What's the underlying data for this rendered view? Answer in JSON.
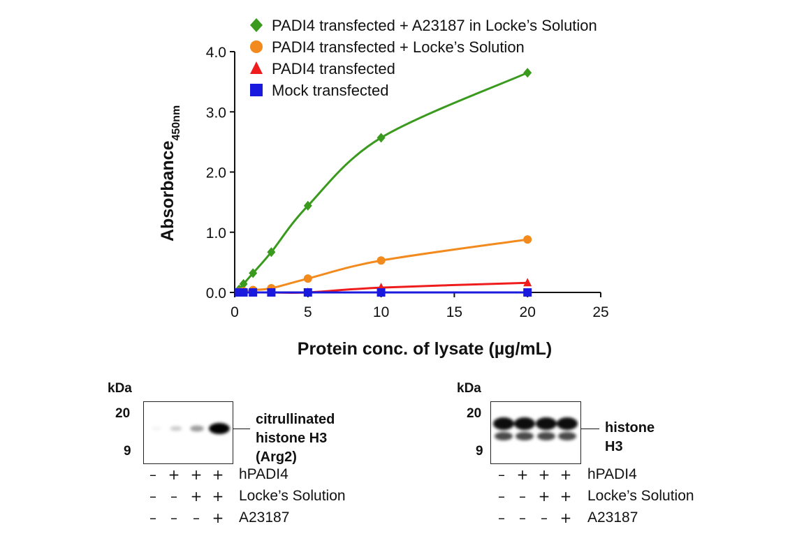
{
  "chart_data": {
    "type": "line",
    "xlabel": "Protein conc. of lysate (µg/mL)",
    "ylabel_main": "Absorbance",
    "ylabel_sub": "450nm",
    "xlim": [
      0,
      25
    ],
    "ylim": [
      0,
      4.0
    ],
    "x_ticks": [
      0,
      5,
      10,
      15,
      20,
      25
    ],
    "x_tick_labels": [
      "0",
      "5",
      "10",
      "15",
      "20",
      "25"
    ],
    "y_ticks": [
      0,
      1,
      2,
      3,
      4
    ],
    "y_tick_labels": [
      "0.0",
      "1.0",
      "2.0",
      "3.0",
      "4.0"
    ],
    "grid": false,
    "legend_position": "top",
    "series": [
      {
        "name": "PADI4 transfected + A23187 in Locke’s Solution",
        "color": "#3a9a1e",
        "marker": "diamond",
        "x": [
          0.3,
          0.6,
          1.25,
          2.5,
          5,
          10,
          20
        ],
        "y": [
          0.05,
          0.14,
          0.32,
          0.67,
          1.44,
          2.57,
          3.65
        ]
      },
      {
        "name": "PADI4 transfected + Locke’s Solution",
        "color": "#f28a1d",
        "marker": "circle",
        "x": [
          0.3,
          0.6,
          1.25,
          2.5,
          5,
          10,
          20
        ],
        "y": [
          0.01,
          0.02,
          0.04,
          0.07,
          0.23,
          0.53,
          0.88
        ]
      },
      {
        "name": "PADI4 transfected",
        "color": "#ee1c1c",
        "marker": "triangle",
        "x": [
          0.3,
          0.6,
          1.25,
          2.5,
          5,
          10,
          20
        ],
        "y": [
          0.0,
          0.0,
          0.0,
          0.0,
          0.0,
          0.08,
          0.16
        ]
      },
      {
        "name": "Mock transfected",
        "color": "#1a1adf",
        "marker": "square",
        "x": [
          0.3,
          0.6,
          1.25,
          2.5,
          5,
          10,
          20
        ],
        "y": [
          0.0,
          0.0,
          0.0,
          0.0,
          0.0,
          0.0,
          0.0
        ]
      }
    ]
  },
  "blots": {
    "kda_label": "kDa",
    "mw_markers": [
      "20",
      "9"
    ],
    "left": {
      "target_line1": "citrullinated histone H3",
      "target_line2": "(Arg2)",
      "band_intensity": [
        0.04,
        0.18,
        0.35,
        1.0
      ]
    },
    "right": {
      "target_line1": "histone H3",
      "band_intensity": [
        0.95,
        0.95,
        0.95,
        0.95
      ]
    },
    "conditions": [
      {
        "name": "hPADI4",
        "signs": [
          "–",
          "+",
          "+",
          "+"
        ]
      },
      {
        "name": "Locke’s Solution",
        "signs": [
          "–",
          "–",
          "+",
          "+"
        ]
      },
      {
        "name": "A23187",
        "signs": [
          "–",
          "–",
          "–",
          "+"
        ]
      }
    ]
  }
}
